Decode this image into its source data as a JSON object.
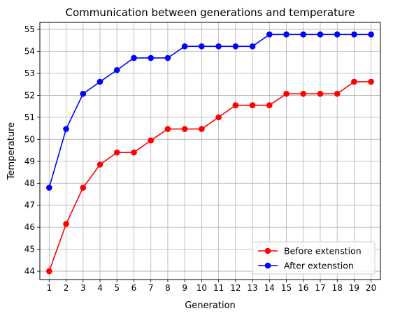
{
  "chart_data": {
    "type": "line",
    "title": "Communication between generations and temperature",
    "xlabel": "Generation",
    "ylabel": "Temperature",
    "x": [
      1,
      2,
      3,
      4,
      5,
      6,
      7,
      8,
      9,
      10,
      11,
      12,
      13,
      14,
      15,
      16,
      17,
      18,
      19,
      20
    ],
    "xlim": [
      0.45,
      20.55
    ],
    "ylim": [
      43.62,
      55.32
    ],
    "xticks": [
      1,
      2,
      3,
      4,
      5,
      6,
      7,
      8,
      9,
      10,
      11,
      12,
      13,
      14,
      15,
      16,
      17,
      18,
      19,
      20
    ],
    "yticks": [
      44,
      45,
      46,
      47,
      48,
      49,
      50,
      51,
      52,
      53,
      54,
      55
    ],
    "grid": true,
    "legend_position": "lower-right",
    "series": [
      {
        "name": "Before extenstion",
        "color": "#ff0000",
        "marker": "circle",
        "values": [
          44.0,
          46.15,
          47.8,
          48.85,
          49.4,
          49.4,
          49.95,
          50.47,
          50.47,
          50.47,
          51.0,
          51.55,
          51.55,
          51.55,
          52.07,
          52.07,
          52.07,
          52.07,
          52.62,
          52.62
        ]
      },
      {
        "name": "After extenstion",
        "color": "#0000ff",
        "marker": "circle",
        "values": [
          47.8,
          50.47,
          52.07,
          52.62,
          53.15,
          53.7,
          53.7,
          53.7,
          54.23,
          54.23,
          54.23,
          54.23,
          54.23,
          54.77,
          54.77,
          54.77,
          54.77,
          54.77,
          54.77,
          54.77
        ]
      }
    ]
  }
}
